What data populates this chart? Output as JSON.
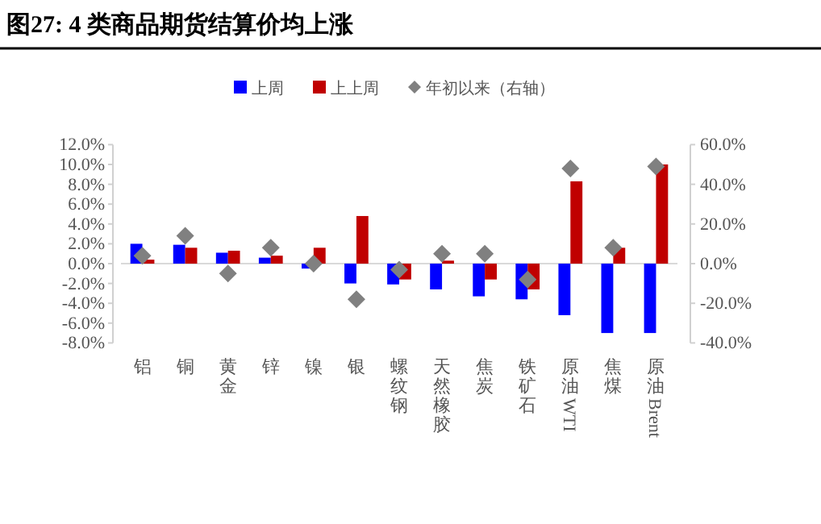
{
  "chart_data": {
    "type": "bar",
    "title": "图27:  4 类商品期货结算价均上涨",
    "categories": [
      "铝",
      "铜",
      "黄金",
      "锌",
      "镍",
      "银",
      "螺纹钢",
      "天然橡胶",
      "焦炭",
      "铁矿石",
      "原油WTI",
      "焦煤",
      "原油Brent"
    ],
    "series": [
      {
        "name": "上周",
        "color": "#0000ff",
        "values": [
          2.0,
          1.9,
          1.1,
          0.6,
          -0.5,
          -2.0,
          -2.1,
          -2.6,
          -3.3,
          -3.6,
          -5.2,
          -7.0,
          -7.0
        ]
      },
      {
        "name": "上上周",
        "color": "#c00000",
        "values": [
          0.4,
          1.6,
          1.3,
          0.8,
          1.6,
          4.8,
          -1.6,
          0.3,
          -1.6,
          -2.6,
          8.3,
          1.6,
          10.0
        ]
      },
      {
        "name": "年初以来（右轴）",
        "type": "scatter",
        "axis": "y2",
        "marker": "diamond",
        "color": "#808080",
        "values": [
          4,
          14,
          -5,
          8,
          0,
          -18,
          -3,
          5,
          5,
          -8,
          48,
          8,
          49
        ]
      }
    ],
    "ylim": [
      -8,
      12
    ],
    "yticks": [
      {
        "value": -8,
        "label": "-8.0%"
      },
      {
        "value": -6,
        "label": "-6.0%"
      },
      {
        "value": -4,
        "label": "-4.0%"
      },
      {
        "value": -2,
        "label": "-2.0%"
      },
      {
        "value": 0,
        "label": "0.0%"
      },
      {
        "value": 2,
        "label": "2.0%"
      },
      {
        "value": 4,
        "label": "4.0%"
      },
      {
        "value": 6,
        "label": "6.0%"
      },
      {
        "value": 8,
        "label": "8.0%"
      },
      {
        "value": 10,
        "label": "10.0%"
      },
      {
        "value": 12,
        "label": "12.0%"
      }
    ],
    "y2lim": [
      -40,
      60
    ],
    "y2ticks": [
      {
        "value": -40,
        "label": "-40.0%"
      },
      {
        "value": -20,
        "label": "-20.0%"
      },
      {
        "value": 0,
        "label": "0.0%"
      },
      {
        "value": 20,
        "label": "20.0%"
      },
      {
        "value": 40,
        "label": "40.0%"
      },
      {
        "value": 60,
        "label": "60.0%"
      }
    ],
    "ref_lines": [
      {
        "axis": "y",
        "value": 0,
        "color": "#d9d9d9"
      }
    ],
    "grid": false,
    "legend": "top"
  }
}
